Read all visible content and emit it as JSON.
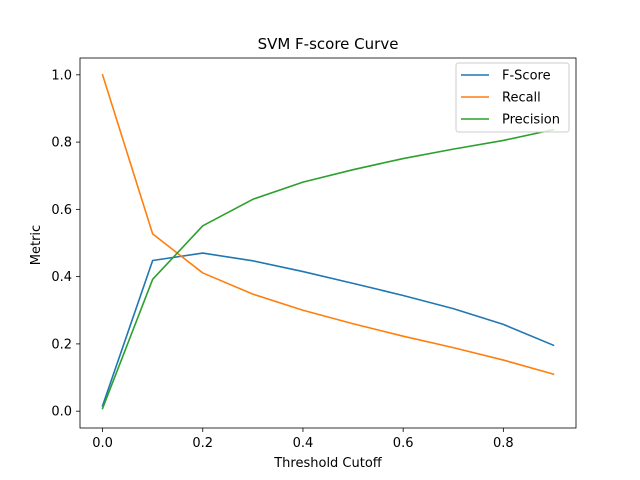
{
  "chart_data": {
    "type": "line",
    "title": "SVM F-score Curve",
    "xlabel": "Threshold Cutoff",
    "ylabel": "Metric",
    "xlim": [
      -0.045,
      0.945
    ],
    "ylim": [
      -0.05,
      1.05
    ],
    "x_ticks": [
      0.0,
      0.2,
      0.4,
      0.6,
      0.8
    ],
    "x_tick_labels": [
      "0.0",
      "0.2",
      "0.4",
      "0.6",
      "0.8"
    ],
    "y_ticks": [
      0.0,
      0.2,
      0.4,
      0.6,
      0.8,
      1.0
    ],
    "y_tick_labels": [
      "0.0",
      "0.2",
      "0.4",
      "0.6",
      "0.8",
      "1.0"
    ],
    "grid": false,
    "legend_position": "top-right",
    "x": [
      0.0,
      0.1,
      0.2,
      0.3,
      0.4,
      0.5,
      0.6,
      0.7,
      0.8,
      0.9
    ],
    "series": [
      {
        "name": "F-Score",
        "color": "#1f77b4",
        "values": [
          0.016,
          0.448,
          0.47,
          0.447,
          0.415,
          0.38,
          0.344,
          0.305,
          0.258,
          0.196
        ]
      },
      {
        "name": "Recall",
        "color": "#ff7f0e",
        "values": [
          1.0,
          0.527,
          0.411,
          0.348,
          0.3,
          0.26,
          0.223,
          0.189,
          0.152,
          0.11
        ]
      },
      {
        "name": "Precision",
        "color": "#2ca02c",
        "values": [
          0.008,
          0.392,
          0.551,
          0.63,
          0.681,
          0.718,
          0.751,
          0.779,
          0.805,
          0.837
        ]
      }
    ]
  }
}
